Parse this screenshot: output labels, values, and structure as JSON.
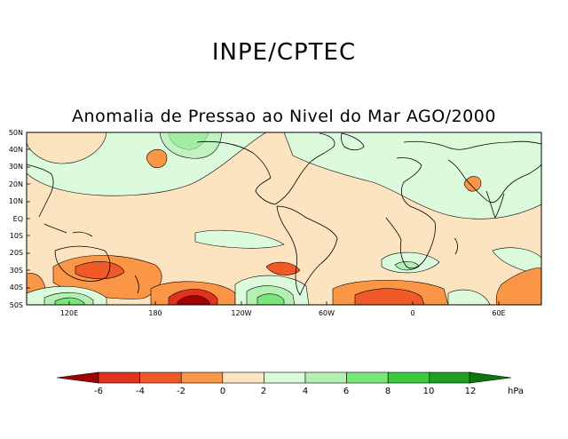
{
  "header": {
    "title": "INPE/CPTEC"
  },
  "map": {
    "title": "Anomalia de Pressao ao Nivel do Mar AGO/2000",
    "lat_labels": [
      "50N",
      "40N",
      "30N",
      "20N",
      "10N",
      "EQ",
      "10S",
      "20S",
      "30S",
      "40S",
      "50S"
    ],
    "lon_labels": [
      "120E",
      "180",
      "120W",
      "60W",
      "0",
      "60E"
    ]
  },
  "colorbar": {
    "unit": "hPa",
    "levels": [
      "-6",
      "-4",
      "-2",
      "0",
      "2",
      "4",
      "6",
      "8",
      "10",
      "12"
    ],
    "colors": [
      "#a50000",
      "#e1321e",
      "#f05a28",
      "#fa9646",
      "#fde4c0",
      "#dcfadc",
      "#b4f0b4",
      "#78e678",
      "#3cc83c",
      "#1ea01e",
      "#0a780a"
    ]
  }
}
